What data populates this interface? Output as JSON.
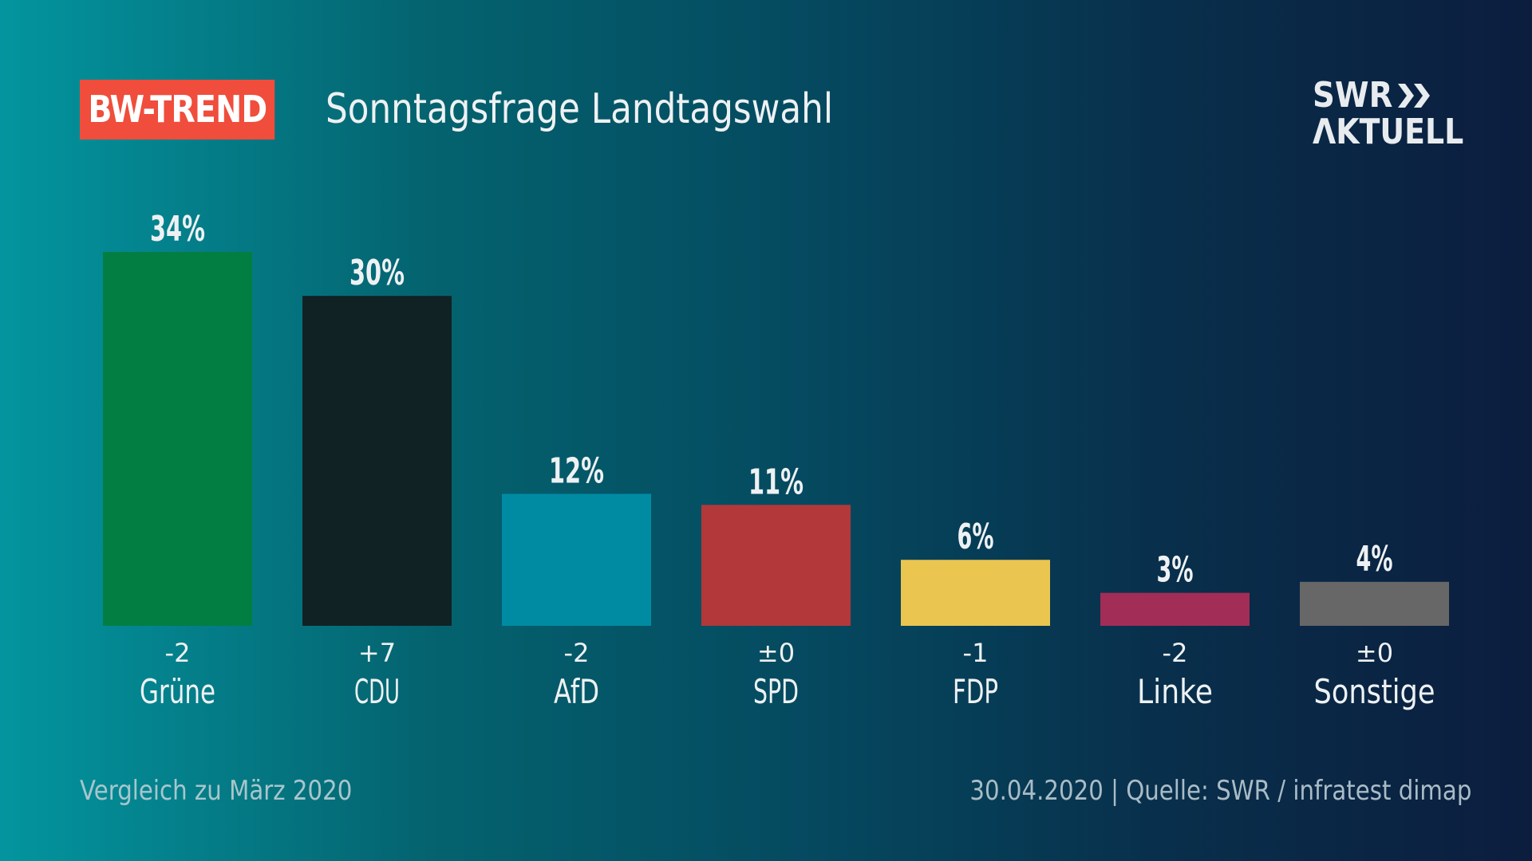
{
  "header": {
    "badge": "BW-TREND",
    "title": "Sonntagsfrage Landtagswahl",
    "badge_color": "#f04d3c"
  },
  "logo": {
    "line1": "SWR",
    "line2": "ΛKTUELL",
    "icon": "double-chevron-right-icon"
  },
  "footer": {
    "left": "Vergleich zu März 2020",
    "right": "30.04.2020 | Quelle: SWR / infratest dimap"
  },
  "chart_data": {
    "type": "bar",
    "title": "Sonntagsfrage Landtagswahl",
    "xlabel": "",
    "ylabel": "",
    "ylim": [
      0,
      34
    ],
    "grid": false,
    "legend": "none",
    "categories": [
      "Grüne",
      "CDU",
      "AfD",
      "SPD",
      "FDP",
      "Linke",
      "Sonstige"
    ],
    "values": [
      34,
      30,
      12,
      11,
      6,
      3,
      4
    ],
    "value_labels": [
      "34%",
      "30%",
      "12%",
      "11%",
      "6%",
      "3%",
      "4%"
    ],
    "changes": [
      "-2",
      "+7",
      "-2",
      "±0",
      "-1",
      "-2",
      "±0"
    ],
    "change_reference": "Vergleich zu März 2020",
    "colors": [
      "#027e42",
      "#112224",
      "#008ba3",
      "#b33839",
      "#eac550",
      "#a22d57",
      "#676767"
    ]
  }
}
